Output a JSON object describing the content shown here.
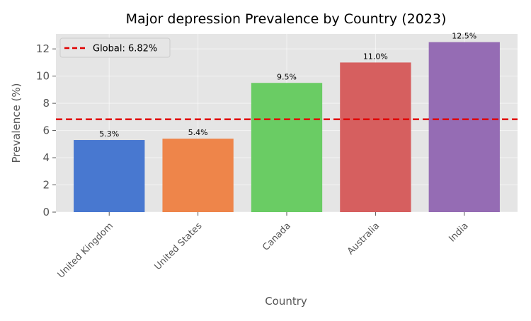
{
  "chart_data": {
    "type": "bar",
    "title": "Major depression Prevalence by Country (2023)",
    "xlabel": "Country",
    "ylabel": "Prevalence (%)",
    "categories": [
      "United Kingdom",
      "United States",
      "Canada",
      "Australia",
      "India"
    ],
    "values": [
      5.3,
      5.4,
      9.5,
      11.0,
      12.5
    ],
    "data_labels": [
      "5.3%",
      "5.4%",
      "9.5%",
      "11.0%",
      "12.5%"
    ],
    "colors": [
      "#4878d0",
      "#ee854a",
      "#6acc64",
      "#d65f5f",
      "#956cb4"
    ],
    "yticks": [
      0,
      2,
      4,
      6,
      8,
      10,
      12
    ],
    "ylim": [
      0,
      13.1
    ],
    "grid": true,
    "reference_line": {
      "value": 6.82,
      "label": "Global: 6.82%",
      "color": "#e00000",
      "style": "dashed"
    },
    "legend_position": "top-left",
    "background_color": "#e5e5e5"
  }
}
